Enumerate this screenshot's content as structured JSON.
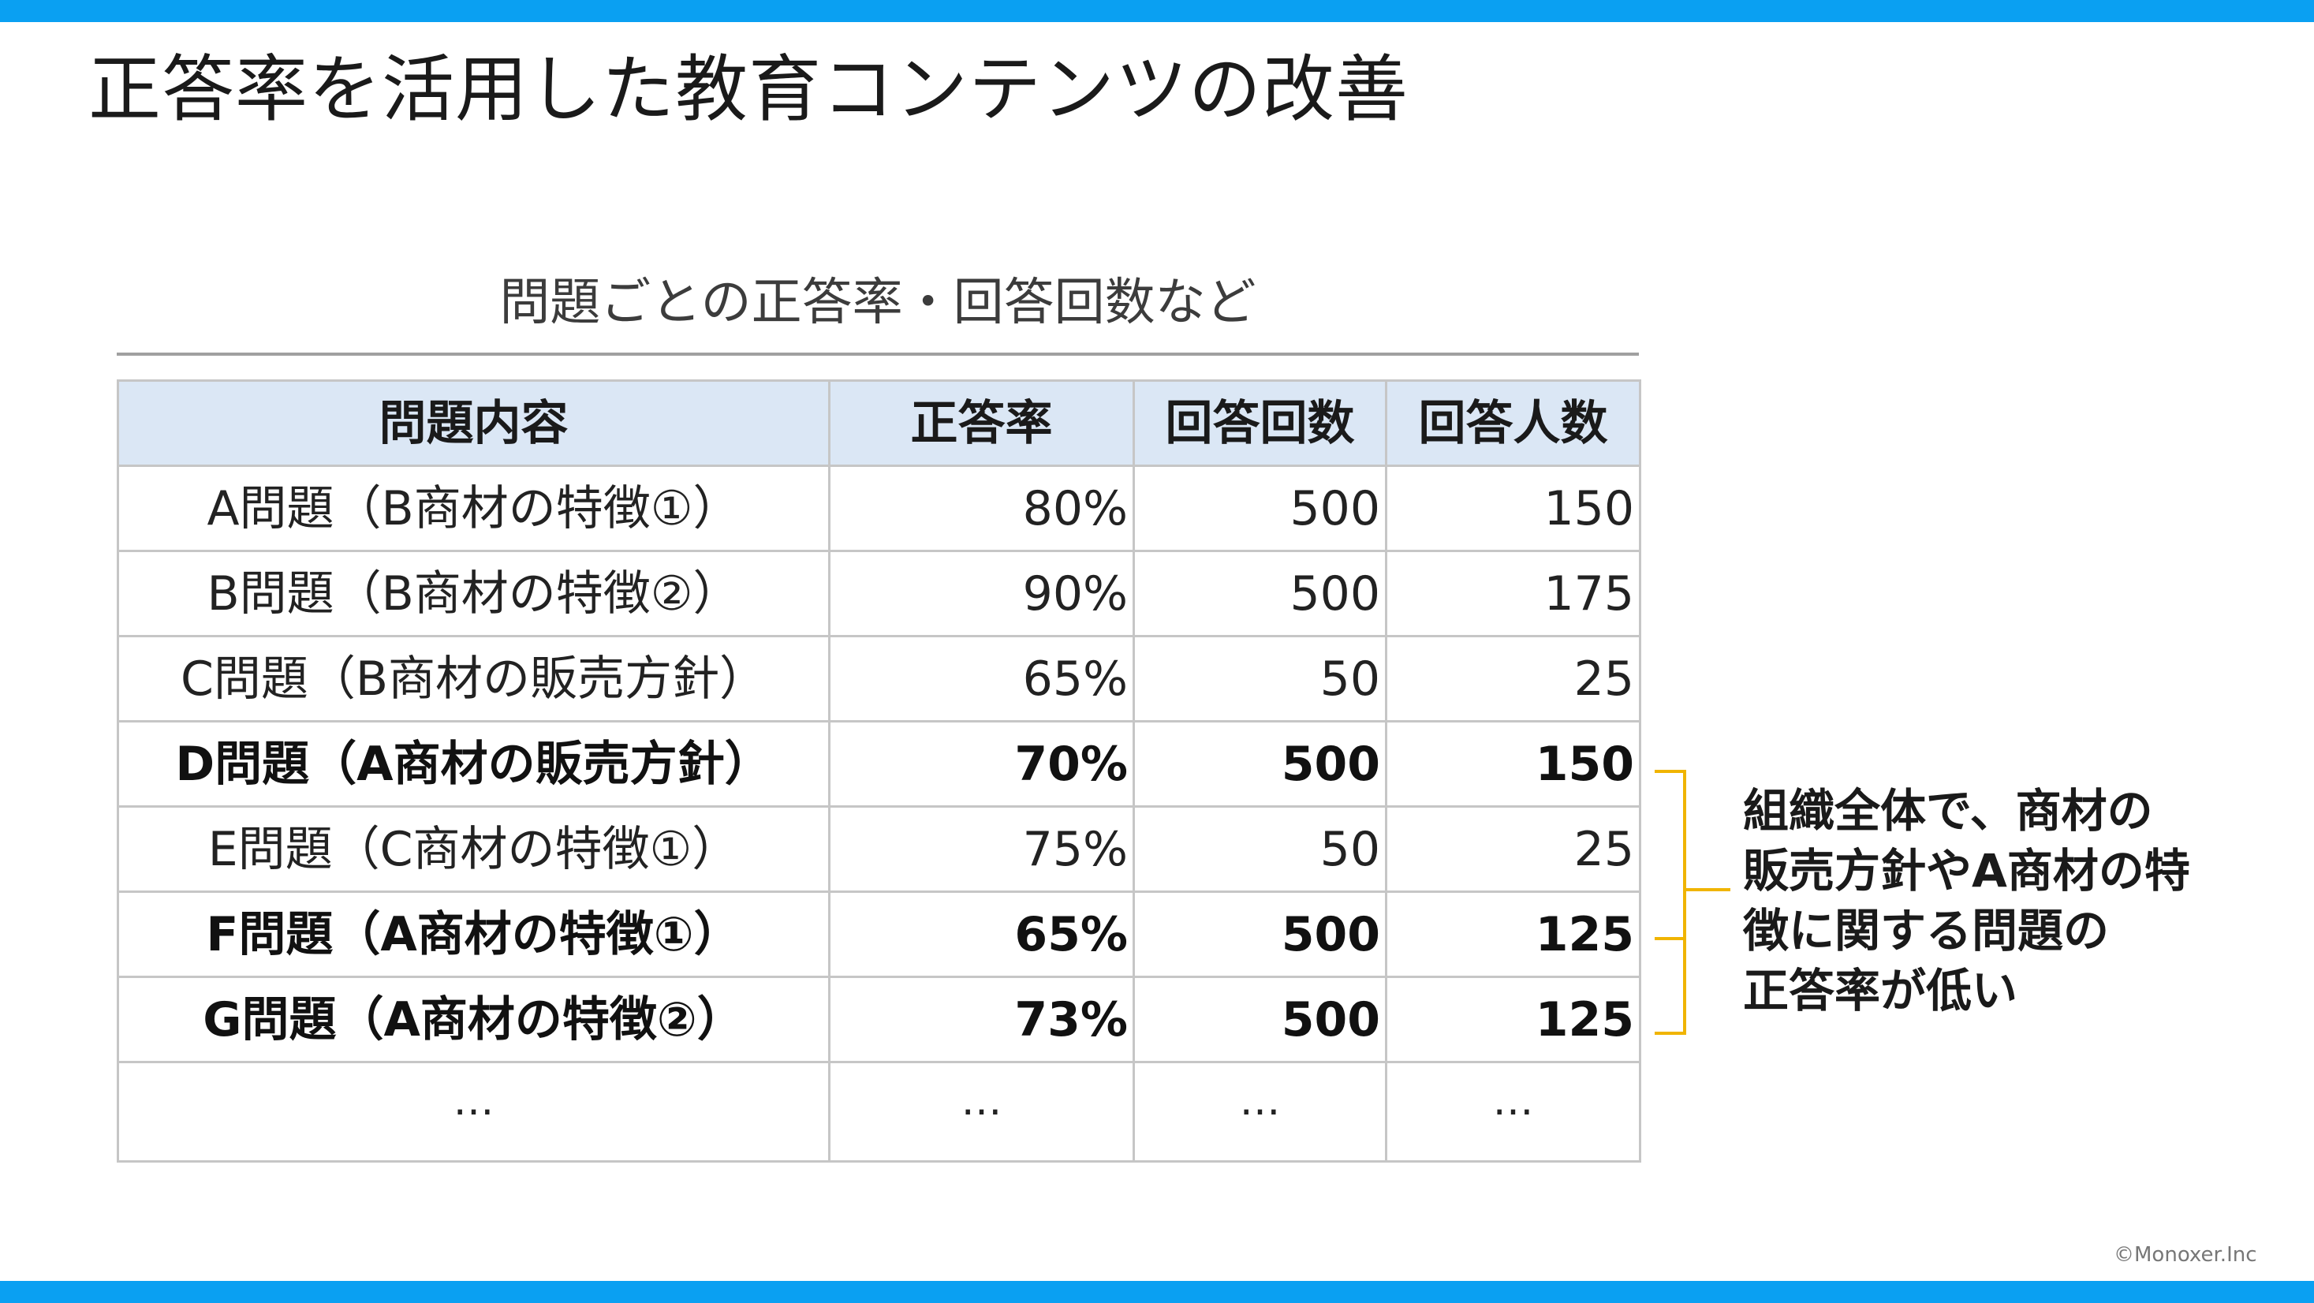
{
  "slide": {
    "title": "正答率を活用した教育コンテンツの改善",
    "copyright": "©Monoxer.Inc",
    "accent_color": "#0aa0f2",
    "bracket_color": "#f0b400"
  },
  "table": {
    "caption": "問題ごとの正答率・回答回数など",
    "headers": [
      "問題内容",
      "正答率",
      "回答回数",
      "回答人数"
    ],
    "rows": [
      {
        "topic": "A問題（B商材の特徴①）",
        "rate": "80%",
        "answers": "500",
        "people": "150",
        "bold": false
      },
      {
        "topic": "B問題（B商材の特徴②）",
        "rate": "90%",
        "answers": "500",
        "people": "175",
        "bold": false
      },
      {
        "topic": "C問題（B商材の販売方針）",
        "rate": "65%",
        "answers": "50",
        "people": "25",
        "bold": false
      },
      {
        "topic": "D問題（A商材の販売方針）",
        "rate": "70%",
        "answers": "500",
        "people": "150",
        "bold": true
      },
      {
        "topic": "E問題（C商材の特徴①）",
        "rate": "75%",
        "answers": "50",
        "people": "25",
        "bold": false
      },
      {
        "topic": "F問題（A商材の特徴①）",
        "rate": "65%",
        "answers": "500",
        "people": "125",
        "bold": true
      },
      {
        "topic": "G問題（A商材の特徴②）",
        "rate": "73%",
        "answers": "500",
        "people": "125",
        "bold": true
      }
    ],
    "ellipsis_row": [
      "…",
      "…",
      "…",
      "…"
    ]
  },
  "annotation": {
    "lines": [
      "組織全体で、商材の",
      "販売方針やA商材の特",
      "徴に関する問題の",
      "正答率が低い"
    ]
  }
}
